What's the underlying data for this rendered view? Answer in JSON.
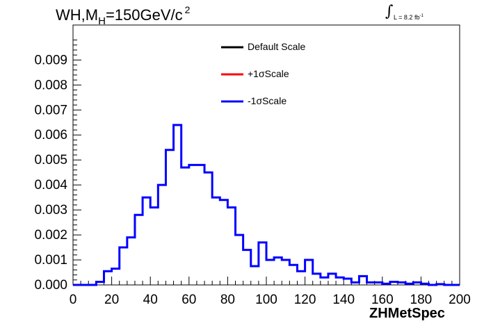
{
  "chart_data": {
    "type": "line",
    "title_main": "WH,M",
    "title_sub": "H",
    "title_rest": "=150GeV/c",
    "title_sup": "2",
    "lumi_text": "L = 8.2 fb",
    "lumi_sup": "-1",
    "xlabel": "ZHMetSpec",
    "ylabel": "",
    "xlim": [
      0,
      200
    ],
    "ylim": [
      0,
      0.0104
    ],
    "x_ticks": [
      "0",
      "20",
      "40",
      "60",
      "80",
      "100",
      "120",
      "140",
      "160",
      "180",
      "200"
    ],
    "y_ticks": [
      "0.000",
      "0.001",
      "0.002",
      "0.003",
      "0.004",
      "0.005",
      "0.006",
      "0.007",
      "0.008",
      "0.009"
    ],
    "bin_width": 4,
    "legend": [
      {
        "name": "Default Scale",
        "color": "#000000"
      },
      {
        "name": "+1σScale",
        "color": "#ff0000"
      },
      {
        "name": "-1σScale",
        "color": "#0000ff"
      }
    ],
    "legend_position": "top-right",
    "grid": false,
    "series": [
      {
        "name": "-1σScale",
        "color": "#0000ff",
        "bin_edges_start": 0,
        "values": [
          0.0,
          0.0,
          0.0,
          0.00012,
          0.00055,
          0.00065,
          0.0015,
          0.0019,
          0.0028,
          0.0035,
          0.0031,
          0.004,
          0.0054,
          0.0064,
          0.0047,
          0.0048,
          0.0048,
          0.0045,
          0.0035,
          0.0034,
          0.0031,
          0.002,
          0.0014,
          0.00075,
          0.0017,
          0.001,
          0.0011,
          0.001,
          0.0008,
          0.00055,
          0.001,
          0.00045,
          0.0003,
          0.00045,
          0.0003,
          0.00025,
          0.0001,
          0.00035,
          0.0001,
          0.0001,
          5e-05,
          0.00012,
          0.0001,
          5e-05,
          0.0001,
          5e-05,
          0.0,
          3e-05,
          0.0,
          0.0
        ]
      }
    ]
  }
}
